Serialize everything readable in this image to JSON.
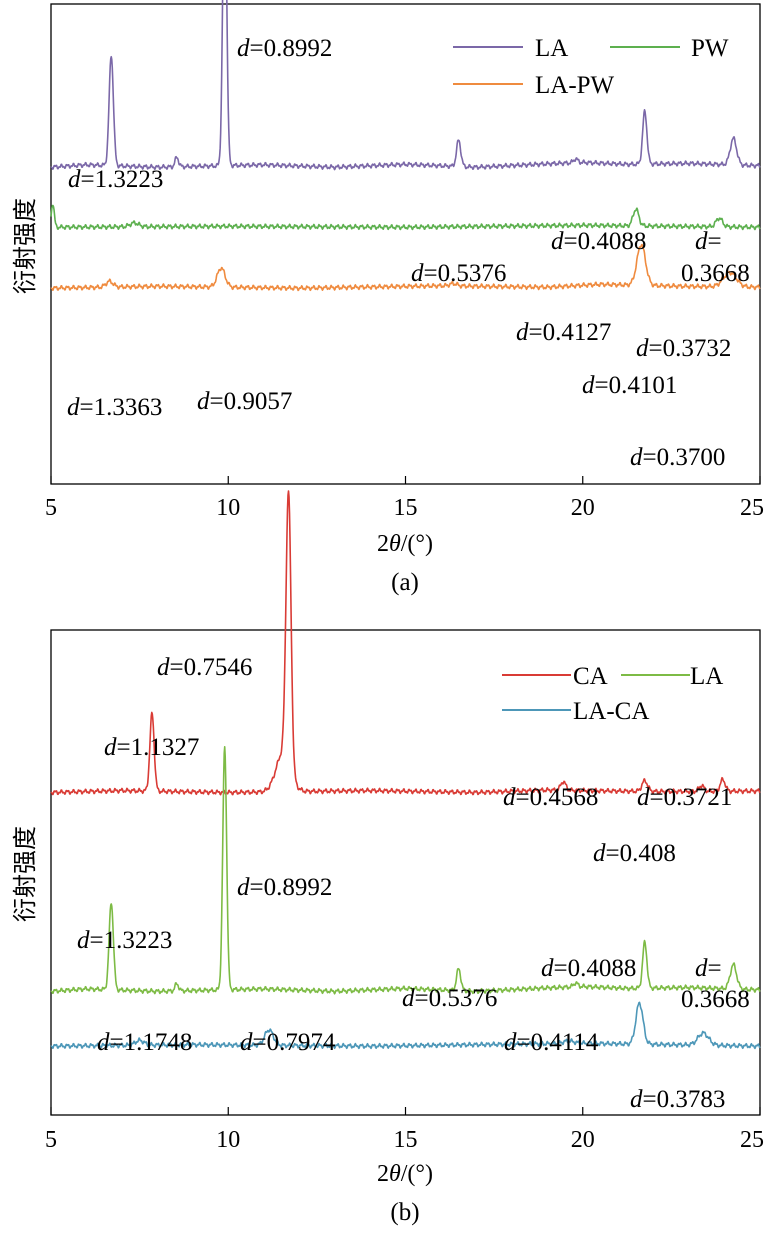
{
  "charts": [
    {
      "caption": "(a)",
      "chart_data": {
        "type": "line",
        "title": "",
        "xlabel_prefix": "2",
        "xlabel_theta": "θ",
        "xlabel_suffix": "/(°)",
        "ylabel": "衍射强度",
        "xlim": [
          5,
          25
        ],
        "xticks": [
          5,
          10,
          15,
          20,
          25
        ],
        "legend_position": "top-right",
        "series": [
          {
            "name": "LA",
            "color": "#7B68A8",
            "offset": 0.66,
            "baseline": [
              [
                5,
                0.0
              ],
              [
                6,
                0.005
              ],
              [
                8,
                0.0
              ],
              [
                11,
                0.005
              ],
              [
                13,
                0.0
              ],
              [
                15,
                0.006
              ],
              [
                17,
                0.0
              ],
              [
                19,
                0.007
              ],
              [
                20,
                0.01
              ],
              [
                21.3,
                0.006
              ],
              [
                23,
                0.008
              ],
              [
                25,
                0.003
              ]
            ],
            "peaks": [
              [
                6.7,
                0.23,
                0.06
              ],
              [
                8.55,
                0.02,
                0.05
              ],
              [
                9.9,
                0.63,
                0.055
              ],
              [
                16.5,
                0.055,
                0.06
              ],
              [
                19.8,
                0.008,
                0.06
              ],
              [
                21.75,
                0.11,
                0.06
              ],
              [
                24.25,
                0.055,
                0.09
              ]
            ]
          },
          {
            "name": "PW",
            "color": "#5DB04F",
            "offset": 0.535,
            "baseline": [
              [
                5,
                0.0
              ],
              [
                10,
                0.002
              ],
              [
                15,
                0.0
              ],
              [
                20,
                0.004
              ],
              [
                25,
                0.0
              ]
            ],
            "peaks": [
              [
                5.05,
                0.05,
                0.04
              ],
              [
                7.35,
                0.008,
                0.12
              ],
              [
                21.5,
                0.035,
                0.08
              ],
              [
                23.85,
                0.018,
                0.09
              ]
            ]
          },
          {
            "name": "LA-PW",
            "color": "#EF8B3F",
            "offset": 0.408,
            "baseline": [
              [
                5,
                0.0
              ],
              [
                8,
                0.004
              ],
              [
                12,
                0.0
              ],
              [
                16,
                0.005
              ],
              [
                19,
                0.002
              ],
              [
                20.5,
                0.008
              ],
              [
                22.8,
                0.004
              ],
              [
                25,
                0.002
              ]
            ],
            "peaks": [
              [
                6.65,
                0.012,
                0.1
              ],
              [
                9.8,
                0.04,
                0.11
              ],
              [
                16.35,
                0.005,
                0.1
              ],
              [
                21.65,
                0.085,
                0.12
              ],
              [
                24.15,
                0.03,
                0.18
              ]
            ]
          }
        ],
        "annotations": [
          {
            "d": "d",
            "v": "=1.3223",
            "x": 6.7
          },
          {
            "d": "d",
            "v": "=0.8992",
            "x": 9.9
          },
          {
            "d": "d",
            "v": "=0.5376",
            "x": 16.5
          },
          {
            "d": "d",
            "v": "=0.4088",
            "x": 21.75
          },
          {
            "d": "d",
            "v": "=",
            "x": 24.25
          },
          {
            "d": "",
            "v": "0.3668",
            "x": 24.25
          },
          {
            "d": "d",
            "v": "=0.4127",
            "x": 21.5
          },
          {
            "d": "d",
            "v": "=0.3732",
            "x": 23.85
          },
          {
            "d": "d",
            "v": "=1.3363",
            "x": 6.65
          },
          {
            "d": "d",
            "v": "=0.9057",
            "x": 9.8
          },
          {
            "d": "d",
            "v": "=0.4101",
            "x": 21.65
          },
          {
            "d": "d",
            "v": "=0.3700",
            "x": 24.15
          }
        ]
      }
    },
    {
      "caption": "(b)",
      "chart_data": {
        "type": "line",
        "title": "",
        "xlabel_prefix": "2",
        "xlabel_theta": "θ",
        "xlabel_suffix": "/(°)",
        "ylabel": "衍射强度",
        "xlim": [
          5,
          25
        ],
        "xticks": [
          5,
          10,
          15,
          20,
          25
        ],
        "legend_position": "top-right",
        "series": [
          {
            "name": "CA",
            "color": "#D93B35",
            "offset": 0.665,
            "baseline": [
              [
                5,
                0.0
              ],
              [
                7,
                0.004
              ],
              [
                10,
                0.0
              ],
              [
                14,
                0.004
              ],
              [
                17,
                0.0
              ],
              [
                19,
                0.005
              ],
              [
                22,
                0.002
              ],
              [
                25,
                0.003
              ]
            ],
            "peaks": [
              [
                7.85,
                0.16,
                0.06
              ],
              [
                11.7,
                0.56,
                0.07
              ],
              [
                11.55,
                0.08,
                0.2
              ],
              [
                19.45,
                0.018,
                0.07
              ],
              [
                21.75,
                0.022,
                0.08
              ],
              [
                23.35,
                0.012,
                0.07
              ],
              [
                23.95,
                0.024,
                0.07
              ]
            ]
          },
          {
            "name": "LA",
            "color": "#7DBB45",
            "offset": 0.255,
            "baseline": [
              [
                5,
                0.0
              ],
              [
                6,
                0.005
              ],
              [
                8,
                0.0
              ],
              [
                11,
                0.005
              ],
              [
                13,
                0.0
              ],
              [
                15,
                0.006
              ],
              [
                17,
                0.0
              ],
              [
                19,
                0.007
              ],
              [
                20,
                0.01
              ],
              [
                21.3,
                0.006
              ],
              [
                23,
                0.008
              ],
              [
                25,
                0.003
              ]
            ],
            "peaks": [
              [
                6.7,
                0.18,
                0.06
              ],
              [
                8.55,
                0.015,
                0.05
              ],
              [
                9.9,
                0.5,
                0.055
              ],
              [
                16.5,
                0.045,
                0.06
              ],
              [
                19.8,
                0.008,
                0.06
              ],
              [
                21.75,
                0.095,
                0.06
              ],
              [
                24.25,
                0.05,
                0.09
              ]
            ]
          },
          {
            "name": "LA-CA",
            "color": "#4D97B8",
            "offset": 0.142,
            "baseline": [
              [
                5,
                0.0
              ],
              [
                9,
                0.003
              ],
              [
                14,
                0.0
              ],
              [
                18,
                0.004
              ],
              [
                20,
                0.006
              ],
              [
                22.5,
                0.003
              ],
              [
                25,
                0.0
              ]
            ],
            "peaks": [
              [
                7.5,
                0.01,
                0.12
              ],
              [
                11.15,
                0.032,
                0.12
              ],
              [
                19.6,
                0.005,
                0.15
              ],
              [
                21.6,
                0.085,
                0.1
              ],
              [
                23.4,
                0.025,
                0.15
              ]
            ]
          }
        ],
        "annotations": [
          {
            "d": "d",
            "v": "=0.7546",
            "x": 11.7
          },
          {
            "d": "d",
            "v": "=1.1327",
            "x": 7.85
          },
          {
            "d": "d",
            "v": "=0.4568",
            "x": 19.45
          },
          {
            "d": "d",
            "v": "=0.3721",
            "x": 23.95
          },
          {
            "d": "d",
            "v": "=0.408",
            "x": 21.75
          },
          {
            "d": "d",
            "v": "=0.8992",
            "x": 9.9
          },
          {
            "d": "d",
            "v": "=1.3223",
            "x": 6.7
          },
          {
            "d": "d",
            "v": "=0.5376",
            "x": 16.5
          },
          {
            "d": "d",
            "v": "=0.4088",
            "x": 21.75
          },
          {
            "d": "d",
            "v": "=",
            "x": 24.25
          },
          {
            "d": "",
            "v": "0.3668",
            "x": 24.25
          },
          {
            "d": "d",
            "v": "=1.1748",
            "x": 7.5
          },
          {
            "d": "d",
            "v": "=0.7974",
            "x": 11.15
          },
          {
            "d": "d",
            "v": "=0.4114",
            "x": 21.6
          },
          {
            "d": "d",
            "v": "=0.3783",
            "x": 23.4
          }
        ]
      }
    }
  ]
}
